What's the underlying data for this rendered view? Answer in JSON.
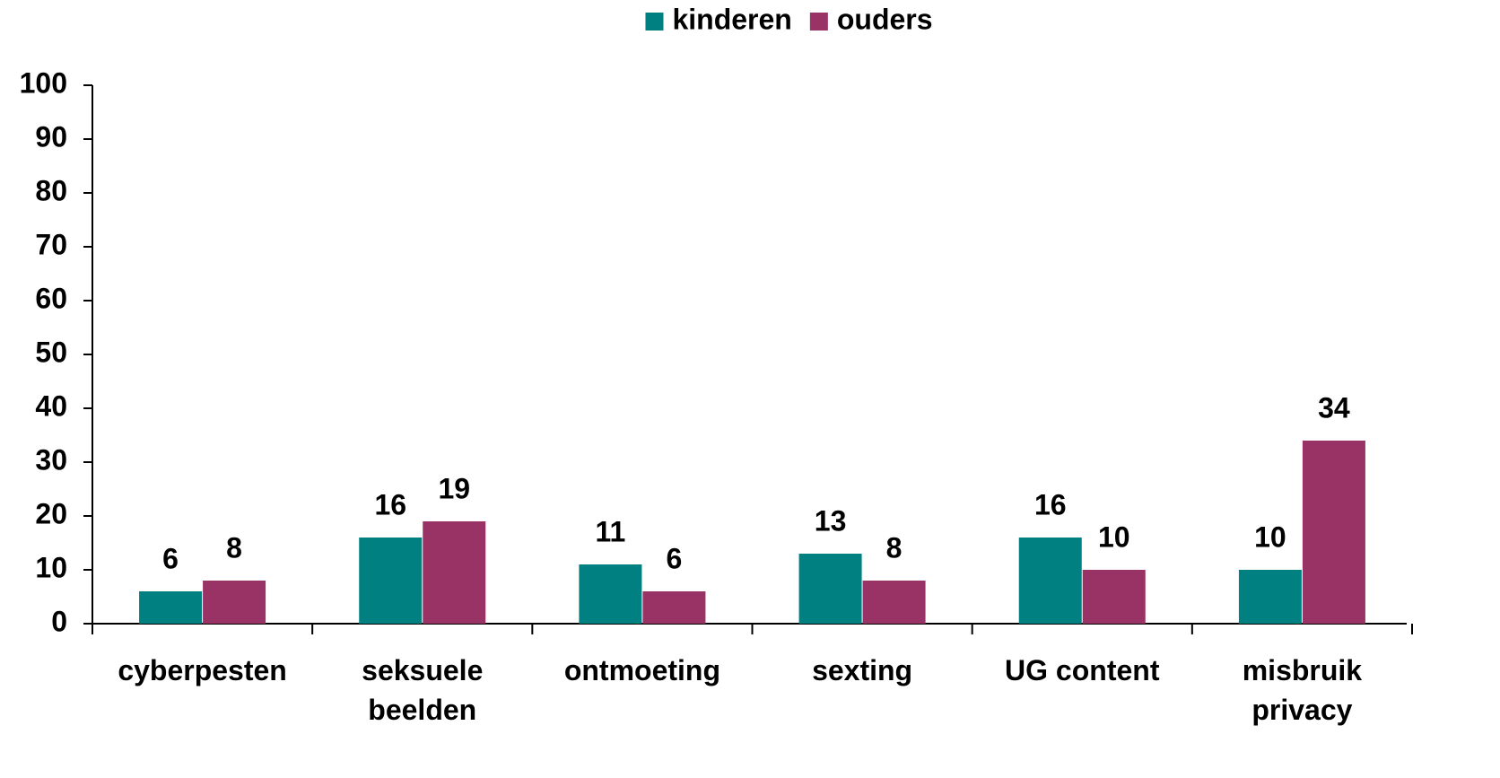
{
  "chart_data": {
    "type": "bar",
    "categories": [
      "cyberpesten",
      "seksuele beelden",
      "ontmoeting",
      "sexting",
      "UG content",
      "misbruik privacy"
    ],
    "series": [
      {
        "name": "kinderen",
        "color": "#008080",
        "values": [
          6,
          16,
          11,
          13,
          16,
          10
        ]
      },
      {
        "name": "ouders",
        "color": "#993366",
        "values": [
          8,
          19,
          6,
          8,
          10,
          34
        ]
      }
    ],
    "ylim": [
      0,
      100
    ],
    "yticks": [
      0,
      10,
      20,
      30,
      40,
      50,
      60,
      70,
      80,
      90,
      100
    ],
    "legend": "top",
    "grid": false
  }
}
